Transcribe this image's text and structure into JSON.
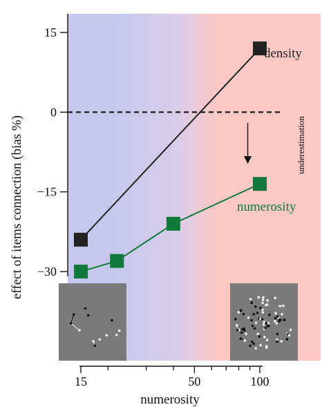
{
  "chart_data": {
    "type": "line",
    "title": "",
    "xlabel": "numerosity",
    "ylabel": "effect of items connection (bias %)",
    "x_scale": "log",
    "xlim": [
      12.5,
      160
    ],
    "ylim": [
      -40,
      15
    ],
    "x_ticks": [
      15,
      20,
      30,
      40,
      50,
      60,
      70,
      80,
      90,
      100
    ],
    "x_tick_labels": [
      {
        "value": 15,
        "label": "15"
      },
      {
        "value": 50,
        "label": "50"
      },
      {
        "value": 100,
        "label": "100"
      }
    ],
    "y_ticks": [
      {
        "value": 15,
        "label": "15"
      },
      {
        "value": 0,
        "label": "0"
      },
      {
        "value": -15,
        "label": "−15"
      },
      {
        "value": -30,
        "label": "−30"
      }
    ],
    "grid": false,
    "reference_line": {
      "y": 0,
      "style": "dashed"
    },
    "background_gradient": {
      "from": "#c5c8ec",
      "to": "#fbc8c4"
    },
    "annotation": {
      "text": "underestimation",
      "x": 88,
      "y_from": -2,
      "y_to": -9
    },
    "series": [
      {
        "name": "density",
        "color": "#222222",
        "x": [
          15,
          100
        ],
        "y": [
          -24,
          12
        ]
      },
      {
        "name": "numerosity",
        "color": "#117a3a",
        "x": [
          15,
          22,
          40,
          100
        ],
        "y": [
          -30,
          -28,
          -21,
          -13.5
        ]
      }
    ],
    "insets": [
      {
        "name": "sparse-dots-inset",
        "near_x": 15
      },
      {
        "name": "dense-dots-inset",
        "near_x": 100
      }
    ]
  }
}
